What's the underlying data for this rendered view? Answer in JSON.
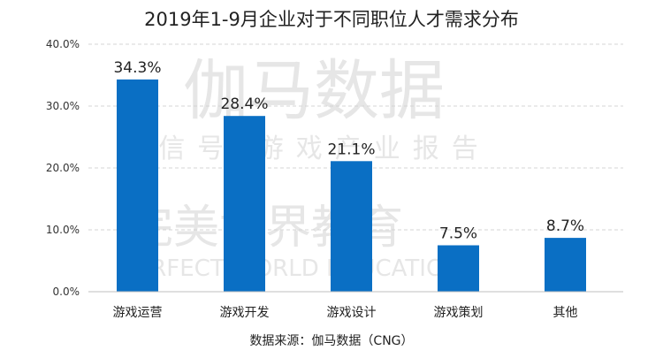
{
  "chart_data": {
    "type": "bar",
    "title": "2019年1-9月企业对于不同职位人才需求分布",
    "categories": [
      "游戏运营",
      "游戏开发",
      "游戏设计",
      "游戏策划",
      "其他"
    ],
    "values": [
      34.3,
      28.4,
      21.1,
      7.5,
      8.7
    ],
    "value_labels": [
      "34.3%",
      "28.4%",
      "21.1%",
      "7.5%",
      "8.7%"
    ],
    "y_ticks": [
      "0.0%",
      "10.0%",
      "20.0%",
      "30.0%",
      "40.0%"
    ],
    "ylim": [
      0,
      40
    ],
    "grid": true,
    "bar_color": "#0a6fc4",
    "source": "数据来源：伽马数据（CNG）"
  }
}
